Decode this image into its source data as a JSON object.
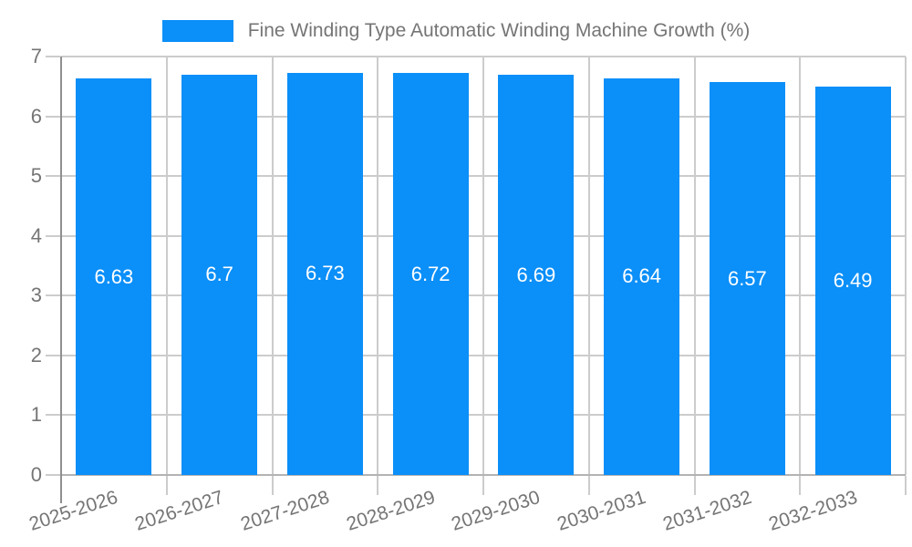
{
  "chart_data": {
    "type": "bar",
    "title": "Fine Winding Type Automatic Winding Machine Growth (%)",
    "legend_position": "top",
    "categories": [
      "2025-2026",
      "2026-2027",
      "2027-2028",
      "2028-2029",
      "2029-2030",
      "2030-2031",
      "2031-2032",
      "2032-2033"
    ],
    "values": [
      6.63,
      6.7,
      6.73,
      6.72,
      6.69,
      6.64,
      6.57,
      6.49
    ],
    "value_labels": [
      "6.63",
      "6.7",
      "6.73",
      "6.72",
      "6.69",
      "6.64",
      "6.57",
      "6.49"
    ],
    "xlabel": "",
    "ylabel": "",
    "ylim": [
      0,
      7
    ],
    "yticks": [
      0,
      1,
      2,
      3,
      4,
      5,
      6,
      7
    ],
    "grid": true,
    "colors": {
      "bar": "#0b8ff8",
      "grid": "#cccccc",
      "baseline": "#b3b3b3",
      "axis": "#8f8f8f",
      "tick_text": "#757575",
      "legend_text": "#757575",
      "bar_label": "#ffffff",
      "background": "#ffffff"
    }
  }
}
